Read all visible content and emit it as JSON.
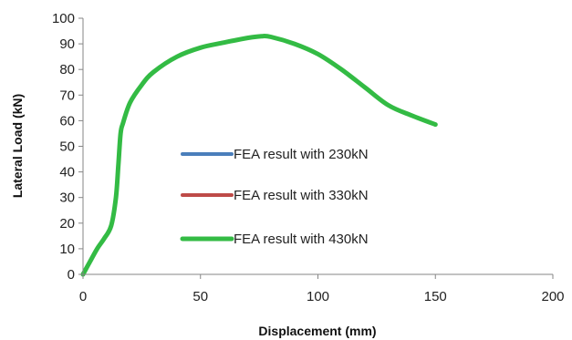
{
  "chart_data": {
    "type": "line",
    "title": "",
    "xlabel": "Displacement (mm)",
    "ylabel": "Lateral Load (kN)",
    "xlim": [
      0,
      200
    ],
    "ylim": [
      0,
      100
    ],
    "x_ticks": [
      0,
      50,
      100,
      150,
      200
    ],
    "y_ticks": [
      0,
      10,
      20,
      30,
      40,
      50,
      60,
      70,
      80,
      90,
      100
    ],
    "grid": false,
    "legend_position": "center",
    "series": [
      {
        "name": "FEA result with 230kN",
        "color": "#4a7ebb",
        "x": [
          0,
          3,
          6,
          9,
          12,
          14,
          15,
          16,
          17,
          20,
          25,
          30,
          40,
          50,
          60,
          70,
          76,
          80,
          90,
          100,
          110,
          120,
          130,
          140,
          150
        ],
        "y": [
          0,
          5,
          10,
          14,
          19,
          30,
          42,
          55,
          59,
          67,
          74,
          79,
          85,
          88.5,
          90.5,
          92.3,
          93,
          92.7,
          90,
          86,
          80,
          73,
          66,
          62,
          58.5
        ]
      },
      {
        "name": "FEA result with 330kN",
        "color": "#be4b48",
        "x": [
          0,
          3,
          6,
          9,
          12,
          14,
          15,
          16,
          17,
          20,
          25,
          30,
          40,
          50,
          60,
          70,
          76,
          80,
          90,
          100,
          110,
          120,
          130,
          140,
          150
        ],
        "y": [
          0,
          5,
          10,
          14,
          19,
          30,
          42,
          55,
          59,
          67,
          74,
          79,
          85,
          88.5,
          90.5,
          92.3,
          93,
          92.7,
          90,
          86,
          80,
          73,
          66,
          62,
          58.5
        ]
      },
      {
        "name": "FEA result with 430kN",
        "color": "#33bb44",
        "x": [
          0,
          3,
          6,
          9,
          12,
          14,
          15,
          16,
          17,
          20,
          25,
          30,
          40,
          50,
          60,
          70,
          76,
          80,
          90,
          100,
          110,
          120,
          130,
          140,
          150
        ],
        "y": [
          0,
          5,
          10,
          14,
          19,
          30,
          42,
          55,
          59,
          67,
          74,
          79,
          85,
          88.5,
          90.5,
          92.3,
          93,
          92.7,
          90,
          86,
          80,
          73,
          66,
          62,
          58.5
        ]
      }
    ]
  }
}
